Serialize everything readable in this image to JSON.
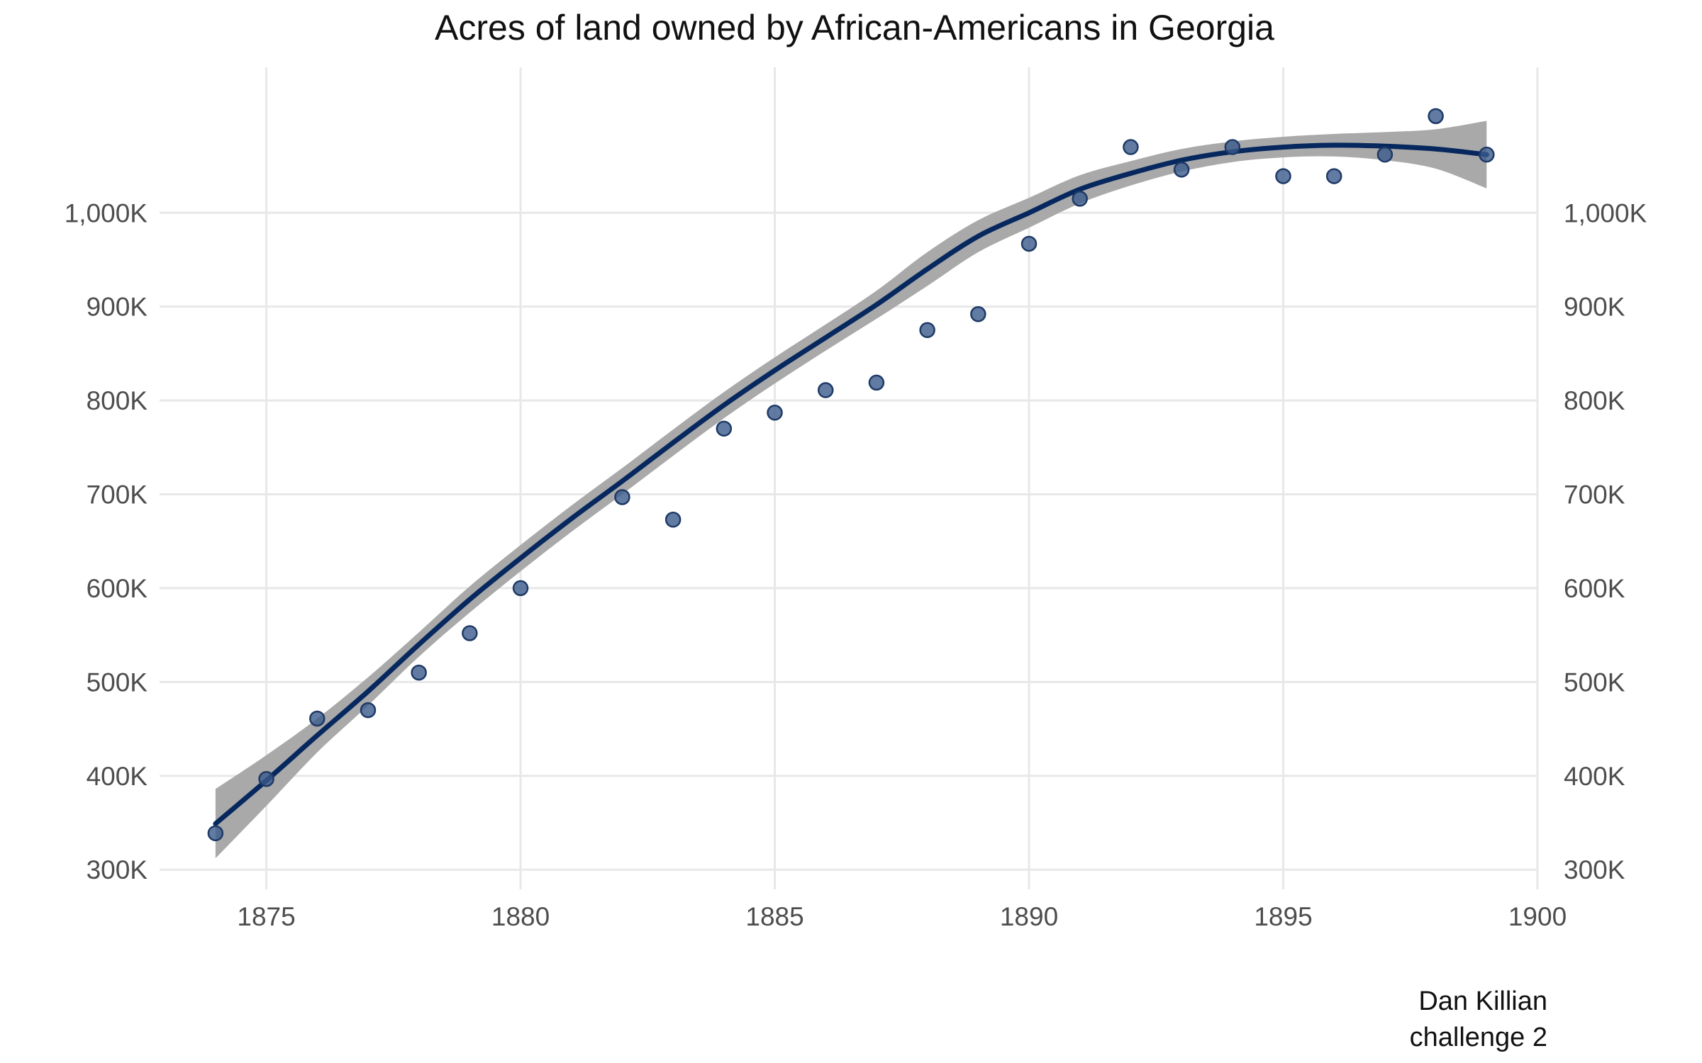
{
  "chart_data": {
    "type": "scatter",
    "title": "Acres of land owned by African-Americans in Georgia",
    "xlabel": "",
    "ylabel": "",
    "xlim": [
      1872.9,
      1900
    ],
    "ylim": [
      279000,
      1155000
    ],
    "x_ticks": [
      1875,
      1880,
      1885,
      1890,
      1895,
      1900
    ],
    "x_tick_labels": [
      "1875",
      "1880",
      "1885",
      "1890",
      "1895",
      "1900"
    ],
    "y_ticks": [
      300000,
      400000,
      500000,
      600000,
      700000,
      800000,
      900000,
      1000000
    ],
    "y_tick_labels": [
      "300K",
      "400K",
      "500K",
      "600K",
      "700K",
      "800K",
      "900K",
      "1,000K"
    ],
    "grid": true,
    "secondary_y_axis": true,
    "series": [
      {
        "kind": "points",
        "x": [
          1874,
          1875,
          1876,
          1877,
          1878,
          1879,
          1880,
          1882,
          1883,
          1884,
          1885,
          1886,
          1887,
          1888,
          1889,
          1890,
          1891,
          1892,
          1893,
          1894,
          1895,
          1896,
          1897,
          1898,
          1899
        ],
        "y": [
          338769,
          396658,
          461000,
          470000,
          510000,
          552000,
          600000,
          697000,
          673000,
          770000,
          787000,
          811000,
          819000,
          875000,
          892000,
          967000,
          1015000,
          1070000,
          1046000,
          1070000,
          1039000,
          1039000,
          1062000,
          1103000,
          1062000
        ]
      },
      {
        "kind": "smooth",
        "x": [
          1874,
          1875,
          1876,
          1877,
          1878,
          1879,
          1880,
          1881,
          1882,
          1883,
          1884,
          1885,
          1886,
          1887,
          1888,
          1889,
          1890,
          1891,
          1892,
          1893,
          1894,
          1895,
          1896,
          1897,
          1898,
          1899
        ],
        "y": [
          349000,
          395000,
          443000,
          490000,
          540000,
          588000,
          632000,
          674000,
          714000,
          755000,
          795000,
          832000,
          867000,
          902000,
          940000,
          975000,
          1000000,
          1025000,
          1042000,
          1056000,
          1065000,
          1070000,
          1072000,
          1071000,
          1068000,
          1062000
        ],
        "lower": [
          312000,
          368000,
          425000,
          475000,
          527000,
          574000,
          618000,
          660000,
          700000,
          741000,
          781000,
          818000,
          853000,
          887000,
          922000,
          958000,
          984000,
          1010000,
          1029000,
          1044000,
          1054000,
          1059000,
          1060000,
          1056000,
          1047000,
          1026000
        ],
        "upper": [
          386000,
          422000,
          461000,
          505000,
          553000,
          602000,
          646000,
          688000,
          728000,
          769000,
          809000,
          846000,
          881000,
          917000,
          958000,
          992000,
          1016000,
          1040000,
          1055000,
          1068000,
          1076000,
          1081000,
          1084000,
          1086000,
          1089000,
          1098000
        ]
      }
    ],
    "colors": {
      "point_fill": "#3a5a8c",
      "point_edge": "#1f3a66",
      "line": "#06285e",
      "band": "#a9a9a9",
      "grid": "#e8e8e8"
    },
    "caption": [
      "Dan Killian",
      "challenge 2"
    ]
  }
}
